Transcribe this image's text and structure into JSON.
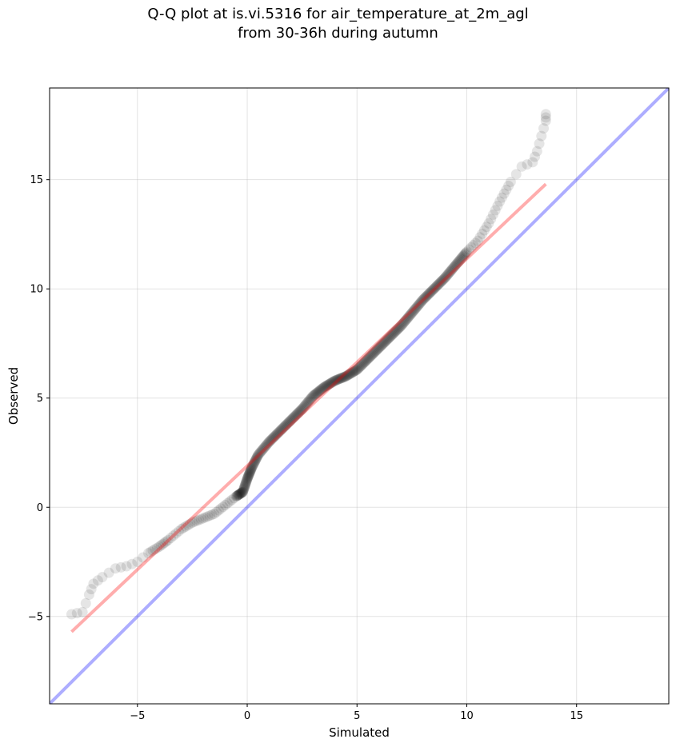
{
  "chart_data": {
    "type": "scatter",
    "title": "Q-Q plot at is.vi.5316 for air_temperature_at_2m_agl",
    "subtitle": "from 30-36h during autumn",
    "xlabel": "Simulated",
    "ylabel": "Observed",
    "xlim": [
      -9.0,
      19.2
    ],
    "ylim": [
      -9.0,
      19.2
    ],
    "xticks": [
      -5,
      0,
      5,
      10,
      15
    ],
    "yticks": [
      -5,
      0,
      5,
      10,
      15
    ],
    "xtick_labels": [
      "−5",
      "0",
      "5",
      "10",
      "15"
    ],
    "ytick_labels": [
      "−5",
      "0",
      "5",
      "10",
      "15"
    ],
    "grid": true,
    "colors": {
      "points": "#000000",
      "fit_line": "#ff0000",
      "identity_line": "#0000ff"
    },
    "quantile_curve": [
      {
        "x": -8.0,
        "y": -4.9
      },
      {
        "x": -7.5,
        "y": -4.8
      },
      {
        "x": -7.2,
        "y": -4.0
      },
      {
        "x": -7.0,
        "y": -3.5
      },
      {
        "x": -6.6,
        "y": -3.2
      },
      {
        "x": -6.0,
        "y": -2.8
      },
      {
        "x": -5.5,
        "y": -2.7
      },
      {
        "x": -5.0,
        "y": -2.5
      },
      {
        "x": -4.5,
        "y": -2.1
      },
      {
        "x": -4.0,
        "y": -1.8
      },
      {
        "x": -3.6,
        "y": -1.5
      },
      {
        "x": -3.0,
        "y": -1.0
      },
      {
        "x": -2.5,
        "y": -0.7
      },
      {
        "x": -2.0,
        "y": -0.5
      },
      {
        "x": -1.5,
        "y": -0.3
      },
      {
        "x": -1.0,
        "y": 0.1
      },
      {
        "x": -0.5,
        "y": 0.5
      },
      {
        "x": -0.2,
        "y": 0.7
      },
      {
        "x": 0.0,
        "y": 1.3
      },
      {
        "x": 0.2,
        "y": 1.8
      },
      {
        "x": 0.5,
        "y": 2.4
      },
      {
        "x": 1.0,
        "y": 3.0
      },
      {
        "x": 1.5,
        "y": 3.5
      },
      {
        "x": 2.0,
        "y": 4.0
      },
      {
        "x": 2.5,
        "y": 4.5
      },
      {
        "x": 3.0,
        "y": 5.1
      },
      {
        "x": 3.5,
        "y": 5.5
      },
      {
        "x": 4.0,
        "y": 5.8
      },
      {
        "x": 4.5,
        "y": 6.0
      },
      {
        "x": 5.0,
        "y": 6.3
      },
      {
        "x": 5.5,
        "y": 6.8
      },
      {
        "x": 6.0,
        "y": 7.3
      },
      {
        "x": 6.5,
        "y": 7.8
      },
      {
        "x": 7.0,
        "y": 8.3
      },
      {
        "x": 7.5,
        "y": 8.9
      },
      {
        "x": 8.0,
        "y": 9.5
      },
      {
        "x": 8.5,
        "y": 10.0
      },
      {
        "x": 9.0,
        "y": 10.5
      },
      {
        "x": 9.5,
        "y": 11.1
      },
      {
        "x": 10.0,
        "y": 11.7
      },
      {
        "x": 10.5,
        "y": 12.2
      },
      {
        "x": 11.0,
        "y": 13.0
      },
      {
        "x": 11.5,
        "y": 14.0
      },
      {
        "x": 12.0,
        "y": 14.9
      },
      {
        "x": 12.5,
        "y": 15.6
      },
      {
        "x": 13.0,
        "y": 15.8
      },
      {
        "x": 13.2,
        "y": 16.3
      },
      {
        "x": 13.4,
        "y": 17.0
      },
      {
        "x": 13.6,
        "y": 17.7
      },
      {
        "x": 13.6,
        "y": 18.0
      }
    ],
    "fit_line": {
      "x": [
        -8.0,
        13.6
      ],
      "y": [
        -5.7,
        14.8
      ]
    },
    "identity_line": {
      "x": [
        -9.0,
        19.2
      ],
      "y": [
        -9.0,
        19.2
      ]
    }
  }
}
